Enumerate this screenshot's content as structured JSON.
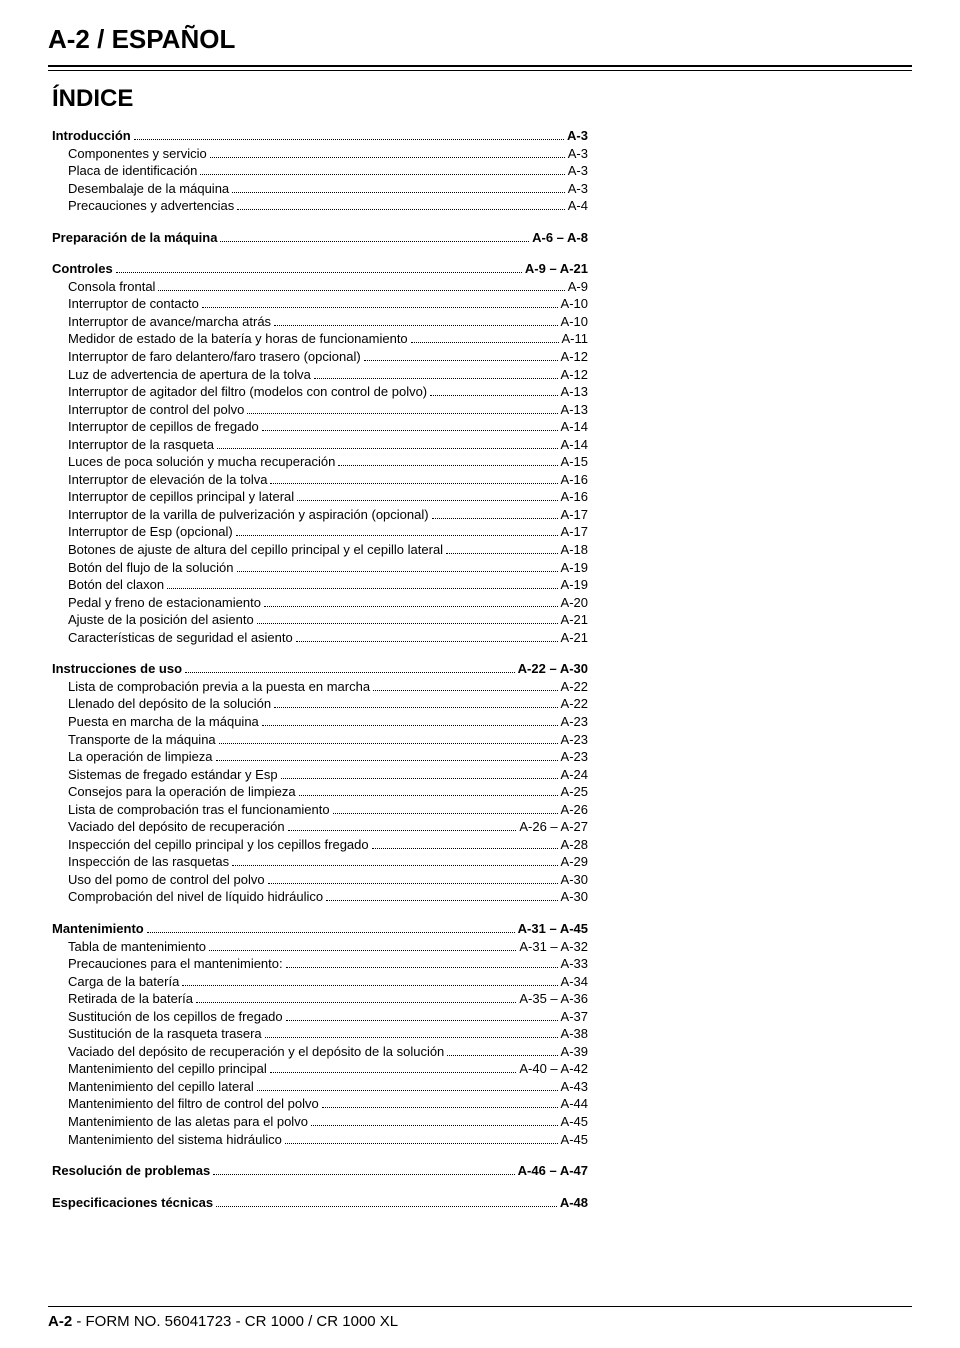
{
  "header": "A-2 / ESPAÑOL",
  "indice": "ÍNDICE",
  "footer": {
    "page": "A-2",
    "rest": " - FORM NO. 56041723 - CR 1000 / CR 1000 XL"
  },
  "sections": [
    {
      "head": {
        "label": "Introducción",
        "page": "A-3"
      },
      "items": [
        {
          "label": "Componentes y servicio",
          "page": "A-3"
        },
        {
          "label": "Placa de identificación",
          "page": "A-3"
        },
        {
          "label": "Desembalaje de la máquina",
          "page": "A-3"
        },
        {
          "label": "Precauciones y advertencias",
          "page": "A-4"
        }
      ]
    },
    {
      "head": {
        "label": "Preparación de la máquina",
        "page": "A-6 – A-8"
      },
      "items": []
    },
    {
      "head": {
        "label": "Controles",
        "page": "A-9 – A-21"
      },
      "items": [
        {
          "label": "Consola frontal",
          "page": "A-9"
        },
        {
          "label": "Interruptor de contacto",
          "page": "A-10"
        },
        {
          "label": "Interruptor de avance/marcha atrás",
          "page": "A-10"
        },
        {
          "label": "Medidor de estado de la batería y horas de funcionamiento",
          "page": "A-11"
        },
        {
          "label": "Interruptor de faro delantero/faro trasero (opcional)",
          "page": "A-12"
        },
        {
          "label": "Luz de advertencia de apertura de la tolva",
          "page": "A-12"
        },
        {
          "label": "Interruptor de agitador del filtro (modelos con control de polvo)",
          "page": "A-13"
        },
        {
          "label": "Interruptor de control del polvo",
          "page": "A-13"
        },
        {
          "label": "Interruptor de cepillos de fregado",
          "page": "A-14"
        },
        {
          "label": "Interruptor de la rasqueta",
          "page": "A-14"
        },
        {
          "label": "Luces de poca solución y mucha recuperación",
          "page": "A-15"
        },
        {
          "label": "Interruptor de elevación de la tolva",
          "page": "A-16"
        },
        {
          "label": "Interruptor de cepillos principal y lateral",
          "page": "A-16"
        },
        {
          "label": "Interruptor de la varilla de pulverización y aspiración (opcional)",
          "page": "A-17"
        },
        {
          "label": "Interruptor de Esp (opcional)",
          "page": "A-17"
        },
        {
          "label": "Botones de ajuste de altura del cepillo principal y el cepillo lateral",
          "page": "A-18"
        },
        {
          "label": "Botón del flujo de la solución",
          "page": "A-19"
        },
        {
          "label": "Botón del claxon",
          "page": "A-19"
        },
        {
          "label": "Pedal y freno de estacionamiento",
          "page": "A-20"
        },
        {
          "label": "Ajuste de la posición del asiento",
          "page": "A-21"
        },
        {
          "label": "Características de seguridad el asiento",
          "page": "A-21"
        }
      ]
    },
    {
      "head": {
        "label": "Instrucciones de uso",
        "page": "A-22 – A-30"
      },
      "items": [
        {
          "label": "Lista de comprobación previa a la puesta en marcha",
          "page": "A-22"
        },
        {
          "label": "Llenado del depósito de la solución",
          "page": "A-22"
        },
        {
          "label": "Puesta en marcha de la máquina",
          "page": "A-23"
        },
        {
          "label": "Transporte de la máquina",
          "page": "A-23"
        },
        {
          "label": "La operación de limpieza",
          "page": "A-23"
        },
        {
          "label": "Sistemas de fregado estándar y Esp",
          "page": "A-24"
        },
        {
          "label": "Consejos para la operación de limpieza",
          "page": "A-25"
        },
        {
          "label": "Lista de comprobación tras el funcionamiento",
          "page": "A-26"
        },
        {
          "label": "Vaciado del depósito de recuperación",
          "page": "A-26 – A-27"
        },
        {
          "label": "Inspección del cepillo principal y los cepillos fregado",
          "page": "A-28"
        },
        {
          "label": "Inspección de las rasquetas",
          "page": "A-29"
        },
        {
          "label": "Uso del pomo de control del polvo",
          "page": "A-30"
        },
        {
          "label": "Comprobación del nivel de líquido hidráulico",
          "page": "A-30"
        }
      ]
    },
    {
      "head": {
        "label": "Mantenimiento",
        "page": "A-31 – A-45"
      },
      "items": [
        {
          "label": "Tabla de mantenimiento",
          "page": "A-31 – A-32"
        },
        {
          "label": "Precauciones para el mantenimiento:",
          "page": "A-33"
        },
        {
          "label": "Carga de la batería",
          "page": "A-34"
        },
        {
          "label": "Retirada de la batería",
          "page": "A-35 – A-36"
        },
        {
          "label": "Sustitución de los cepillos de fregado",
          "page": "A-37"
        },
        {
          "label": "Sustitución de la rasqueta trasera",
          "page": "A-38"
        },
        {
          "label": "Vaciado del depósito de recuperación y el depósito de la solución",
          "page": "A-39"
        },
        {
          "label": "Mantenimiento del cepillo principal",
          "page": "A-40 – A-42"
        },
        {
          "label": "Mantenimiento del cepillo lateral",
          "page": "A-43"
        },
        {
          "label": "Mantenimiento del filtro de control del polvo",
          "page": "A-44"
        },
        {
          "label": "Mantenimiento de las aletas para el polvo",
          "page": "A-45"
        },
        {
          "label": "Mantenimiento del sistema hidráulico",
          "page": "A-45"
        }
      ]
    },
    {
      "head": {
        "label": "Resolución de problemas",
        "page": "A-46 – A-47"
      },
      "items": []
    },
    {
      "head": {
        "label": "Especificaciones técnicas",
        "page": "A-48"
      },
      "items": []
    }
  ]
}
